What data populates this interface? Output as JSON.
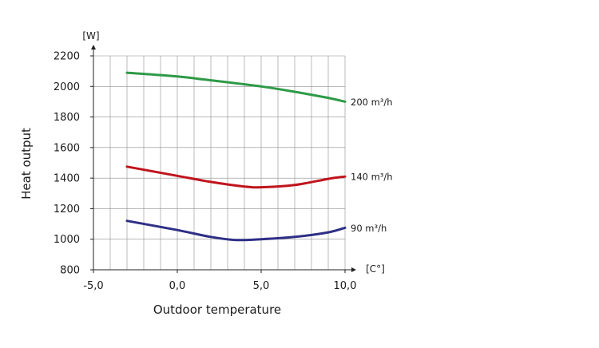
{
  "chart_data": {
    "type": "line",
    "title": "",
    "xlabel": "Outdoor temperature",
    "ylabel": "Heat output",
    "x_unit": "[C°]",
    "y_unit": "[W]",
    "xlim": [
      -5,
      10
    ],
    "ylim": [
      800,
      2200
    ],
    "x_ticks": [
      "-5,0",
      "0,0",
      "5,0",
      "10,0"
    ],
    "y_ticks": [
      "800",
      "1000",
      "1200",
      "1400",
      "1600",
      "1800",
      "2000",
      "2200"
    ],
    "grid": true,
    "series": [
      {
        "name": "200 m³/h",
        "color": "#2e9a47",
        "x": [
          -3,
          0,
          2,
          5,
          7,
          9,
          10
        ],
        "y": [
          2090,
          2065,
          2040,
          2000,
          1965,
          1925,
          1900
        ]
      },
      {
        "name": "140 m³/h",
        "color": "#c0141c",
        "x": [
          -3,
          0,
          2,
          4,
          5,
          7,
          9,
          10
        ],
        "y": [
          1475,
          1415,
          1375,
          1345,
          1340,
          1355,
          1395,
          1410
        ]
      },
      {
        "name": "90 m³/h",
        "color": "#2e2f86",
        "x": [
          -3,
          0,
          2,
          3.5,
          5,
          7,
          9,
          10
        ],
        "y": [
          1120,
          1060,
          1015,
          995,
          1000,
          1015,
          1045,
          1075
        ]
      }
    ]
  }
}
